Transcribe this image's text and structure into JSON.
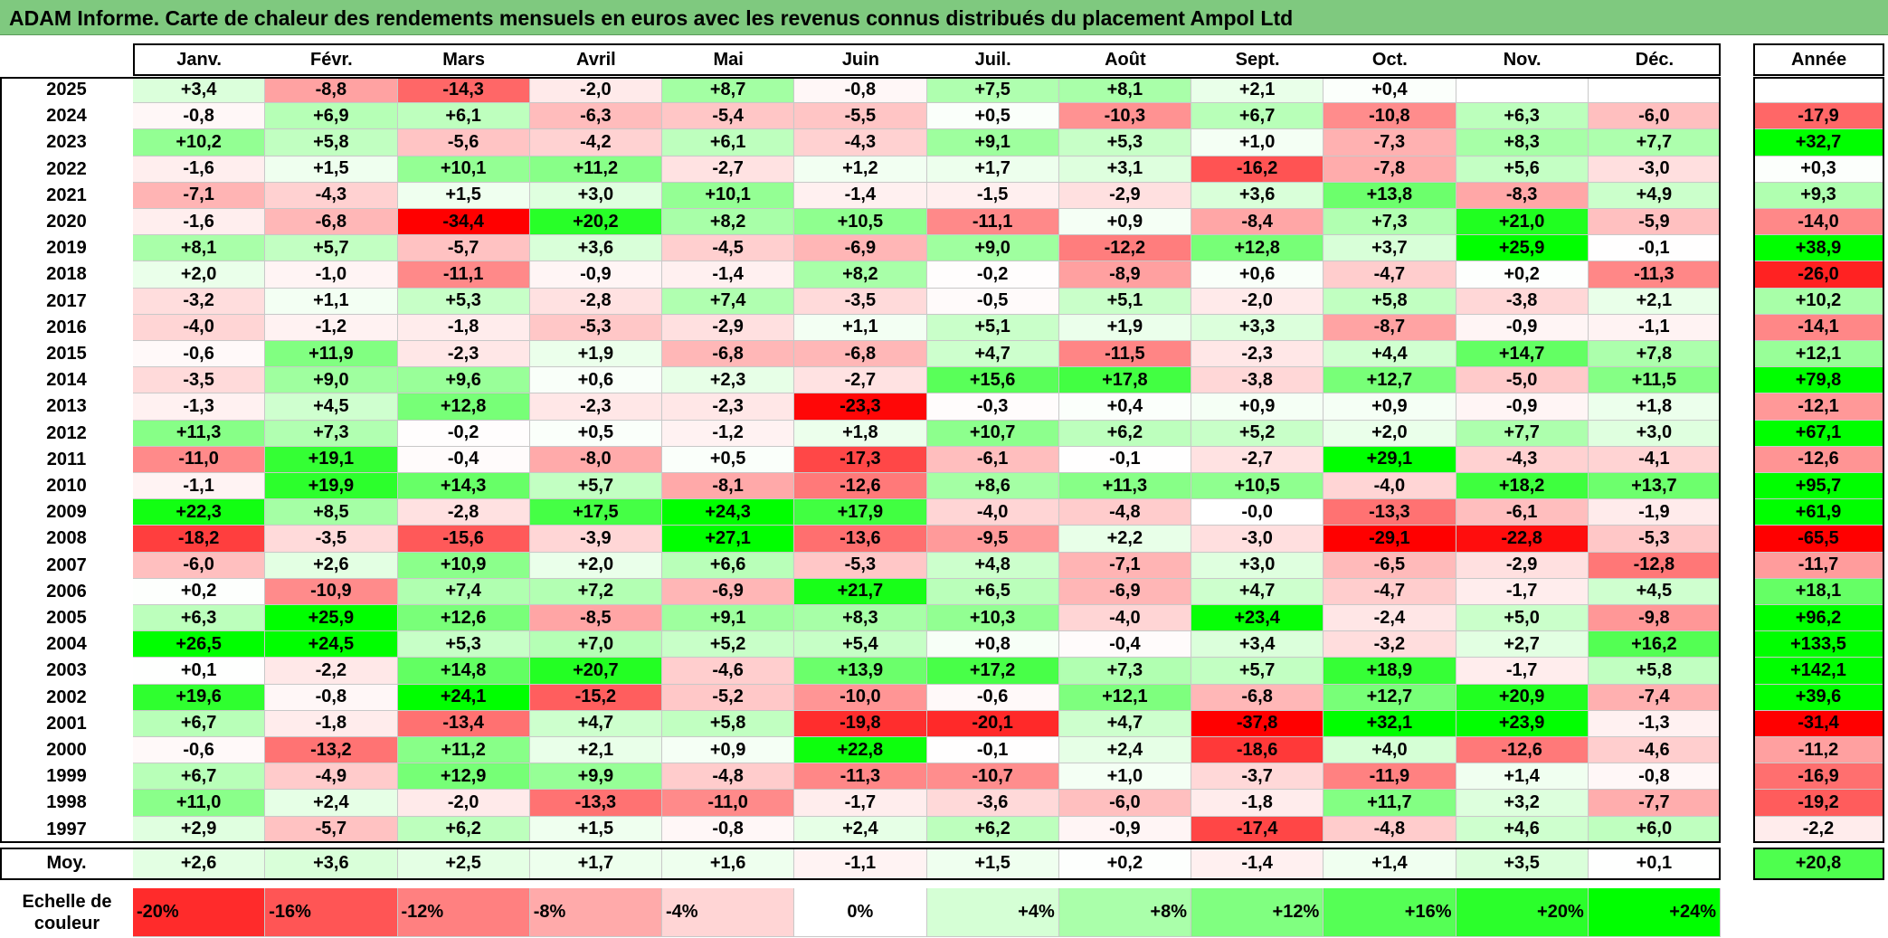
{
  "title": "ADAM Informe. Carte de chaleur des rendements mensuels en euros avec les revenus connus distribués du placement Ampol Ltd",
  "chart_data": {
    "type": "heatmap",
    "months": [
      "Janv.",
      "Févr.",
      "Mars",
      "Avril",
      "Mai",
      "Juin",
      "Juil.",
      "Août",
      "Sept.",
      "Oct.",
      "Nov.",
      "Déc."
    ],
    "annual_header": "Année",
    "rows": [
      {
        "year": "2025",
        "values": [
          "+3,4",
          "-8,8",
          "-14,3",
          "-2,0",
          "+8,7",
          "-0,8",
          "+7,5",
          "+8,1",
          "+2,1",
          "+0,4",
          "",
          ""
        ],
        "annual": ""
      },
      {
        "year": "2024",
        "values": [
          "-0,8",
          "+6,9",
          "+6,1",
          "-6,3",
          "-5,4",
          "-5,5",
          "+0,5",
          "-10,3",
          "+6,7",
          "-10,8",
          "+6,3",
          "-6,0"
        ],
        "annual": "-17,9"
      },
      {
        "year": "2023",
        "values": [
          "+10,2",
          "+5,8",
          "-5,6",
          "-4,2",
          "+6,1",
          "-4,3",
          "+9,1",
          "+5,3",
          "+1,0",
          "-7,3",
          "+8,3",
          "+7,7"
        ],
        "annual": "+32,7"
      },
      {
        "year": "2022",
        "values": [
          "-1,6",
          "+1,5",
          "+10,1",
          "+11,2",
          "-2,7",
          "+1,2",
          "+1,7",
          "+3,1",
          "-16,2",
          "-7,8",
          "+5,6",
          "-3,0"
        ],
        "annual": "+0,3"
      },
      {
        "year": "2021",
        "values": [
          "-7,1",
          "-4,3",
          "+1,5",
          "+3,0",
          "+10,1",
          "-1,4",
          "-1,5",
          "-2,9",
          "+3,6",
          "+13,8",
          "-8,3",
          "+4,9"
        ],
        "annual": "+9,3"
      },
      {
        "year": "2020",
        "values": [
          "-1,6",
          "-6,8",
          "-34,4",
          "+20,2",
          "+8,2",
          "+10,5",
          "-11,1",
          "+0,9",
          "-8,4",
          "+7,3",
          "+21,0",
          "-5,9"
        ],
        "annual": "-14,0"
      },
      {
        "year": "2019",
        "values": [
          "+8,1",
          "+5,7",
          "-5,7",
          "+3,6",
          "-4,5",
          "-6,9",
          "+9,0",
          "-12,2",
          "+12,8",
          "+3,7",
          "+25,9",
          "-0,1"
        ],
        "annual": "+38,9"
      },
      {
        "year": "2018",
        "values": [
          "+2,0",
          "-1,0",
          "-11,1",
          "-0,9",
          "-1,4",
          "+8,2",
          "-0,2",
          "-8,9",
          "+0,6",
          "-4,7",
          "+0,2",
          "-11,3"
        ],
        "annual": "-26,0"
      },
      {
        "year": "2017",
        "values": [
          "-3,2",
          "+1,1",
          "+5,3",
          "-2,8",
          "+7,4",
          "-3,5",
          "-0,5",
          "+5,1",
          "-2,0",
          "+5,8",
          "-3,8",
          "+2,1"
        ],
        "annual": "+10,2"
      },
      {
        "year": "2016",
        "values": [
          "-4,0",
          "-1,2",
          "-1,8",
          "-5,3",
          "-2,9",
          "+1,1",
          "+5,1",
          "+1,9",
          "+3,3",
          "-8,7",
          "-0,9",
          "-1,1"
        ],
        "annual": "-14,1"
      },
      {
        "year": "2015",
        "values": [
          "-0,6",
          "+11,9",
          "-2,3",
          "+1,9",
          "-6,8",
          "-6,8",
          "+4,7",
          "-11,5",
          "-2,3",
          "+4,4",
          "+14,7",
          "+7,8"
        ],
        "annual": "+12,1"
      },
      {
        "year": "2014",
        "values": [
          "-3,5",
          "+9,0",
          "+9,6",
          "+0,6",
          "+2,3",
          "-2,7",
          "+15,6",
          "+17,8",
          "-3,8",
          "+12,7",
          "-5,0",
          "+11,5"
        ],
        "annual": "+79,8"
      },
      {
        "year": "2013",
        "values": [
          "-1,3",
          "+4,5",
          "+12,8",
          "-2,3",
          "-2,3",
          "-23,3",
          "-0,3",
          "+0,4",
          "+0,9",
          "+0,9",
          "-0,9",
          "+1,8"
        ],
        "annual": "-12,1"
      },
      {
        "year": "2012",
        "values": [
          "+11,3",
          "+7,3",
          "-0,2",
          "+0,5",
          "-1,2",
          "+1,8",
          "+10,7",
          "+6,2",
          "+5,2",
          "+2,0",
          "+7,7",
          "+3,0"
        ],
        "annual": "+67,1"
      },
      {
        "year": "2011",
        "values": [
          "-11,0",
          "+19,1",
          "-0,4",
          "-8,0",
          "+0,5",
          "-17,3",
          "-6,1",
          "-0,1",
          "-2,7",
          "+29,1",
          "-4,3",
          "-4,1"
        ],
        "annual": "-12,6"
      },
      {
        "year": "2010",
        "values": [
          "-1,1",
          "+19,9",
          "+14,3",
          "+5,7",
          "-8,1",
          "-12,6",
          "+8,6",
          "+11,3",
          "+10,5",
          "-4,0",
          "+18,2",
          "+13,7"
        ],
        "annual": "+95,7"
      },
      {
        "year": "2009",
        "values": [
          "+22,3",
          "+8,5",
          "-2,8",
          "+17,5",
          "+24,3",
          "+17,9",
          "-4,0",
          "-4,8",
          "-0,0",
          "-13,3",
          "-6,1",
          "-1,9"
        ],
        "annual": "+61,9"
      },
      {
        "year": "2008",
        "values": [
          "-18,2",
          "-3,5",
          "-15,6",
          "-3,9",
          "+27,1",
          "-13,6",
          "-9,5",
          "+2,2",
          "-3,0",
          "-29,1",
          "-22,8",
          "-5,3"
        ],
        "annual": "-65,5"
      },
      {
        "year": "2007",
        "values": [
          "-6,0",
          "+2,6",
          "+10,9",
          "+2,0",
          "+6,6",
          "-5,3",
          "+4,8",
          "-7,1",
          "+3,0",
          "-6,5",
          "-2,9",
          "-12,8"
        ],
        "annual": "-11,7"
      },
      {
        "year": "2006",
        "values": [
          "+0,2",
          "-10,9",
          "+7,4",
          "+7,2",
          "-6,9",
          "+21,7",
          "+6,5",
          "-6,9",
          "+4,7",
          "-4,7",
          "-1,7",
          "+4,5"
        ],
        "annual": "+18,1"
      },
      {
        "year": "2005",
        "values": [
          "+6,3",
          "+25,9",
          "+12,6",
          "-8,5",
          "+9,1",
          "+8,3",
          "+10,3",
          "-4,0",
          "+23,4",
          "-2,4",
          "+5,0",
          "-9,8"
        ],
        "annual": "+96,2"
      },
      {
        "year": "2004",
        "values": [
          "+26,5",
          "+24,5",
          "+5,3",
          "+7,0",
          "+5,2",
          "+5,4",
          "+0,8",
          "-0,4",
          "+3,4",
          "-3,2",
          "+2,7",
          "+16,2"
        ],
        "annual": "+133,5"
      },
      {
        "year": "2003",
        "values": [
          "+0,1",
          "-2,2",
          "+14,8",
          "+20,7",
          "-4,6",
          "+13,9",
          "+17,2",
          "+7,3",
          "+5,7",
          "+18,9",
          "-1,7",
          "+5,8"
        ],
        "annual": "+142,1"
      },
      {
        "year": "2002",
        "values": [
          "+19,6",
          "-0,8",
          "+24,1",
          "-15,2",
          "-5,2",
          "-10,0",
          "-0,6",
          "+12,1",
          "-6,8",
          "+12,7",
          "+20,9",
          "-7,4"
        ],
        "annual": "+39,6"
      },
      {
        "year": "2001",
        "values": [
          "+6,7",
          "-1,8",
          "-13,4",
          "+4,7",
          "+5,8",
          "-19,8",
          "-20,1",
          "+4,7",
          "-37,8",
          "+32,1",
          "+23,9",
          "-1,3"
        ],
        "annual": "-31,4"
      },
      {
        "year": "2000",
        "values": [
          "-0,6",
          "-13,2",
          "+11,2",
          "+2,1",
          "+0,9",
          "+22,8",
          "-0,1",
          "+2,4",
          "-18,6",
          "+4,0",
          "-12,6",
          "-4,6"
        ],
        "annual": "-11,2"
      },
      {
        "year": "1999",
        "values": [
          "+6,7",
          "-4,9",
          "+12,9",
          "+9,9",
          "-4,8",
          "-11,3",
          "-10,7",
          "+1,0",
          "-3,7",
          "-11,9",
          "+1,4",
          "-0,8"
        ],
        "annual": "-16,9"
      },
      {
        "year": "1998",
        "values": [
          "+11,0",
          "+2,4",
          "-2,0",
          "-13,3",
          "-11,0",
          "-1,7",
          "-3,6",
          "-6,0",
          "-1,8",
          "+11,7",
          "+3,2",
          "-7,7"
        ],
        "annual": "-19,2"
      },
      {
        "year": "1997",
        "values": [
          "+2,9",
          "-5,7",
          "+6,2",
          "+1,5",
          "-0,8",
          "+2,4",
          "+6,2",
          "-0,9",
          "-17,4",
          "-4,8",
          "+4,6",
          "+6,0"
        ],
        "annual": "-2,2"
      }
    ],
    "average": {
      "label": "Moy.",
      "values": [
        "+2,6",
        "+3,6",
        "+2,5",
        "+1,7",
        "+1,6",
        "-1,1",
        "+1,5",
        "+0,2",
        "-1,4",
        "+1,4",
        "+3,5",
        "+0,1"
      ],
      "annual": "+20,8"
    },
    "color_scale": {
      "label": "Echelle de couleur",
      "steps": [
        "-20%",
        "-16%",
        "-12%",
        "-8%",
        "-4%",
        "0%",
        "+4%",
        "+8%",
        "+12%",
        "+16%",
        "+20%",
        "+24%"
      ],
      "negative_color": "#ff0000",
      "neutral_color": "#ffffff",
      "positive_color": "#00ff00"
    }
  }
}
